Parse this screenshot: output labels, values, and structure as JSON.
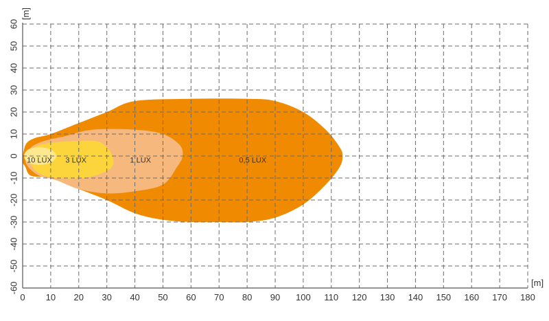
{
  "chart_data": {
    "type": "area",
    "title": "",
    "x_unit": "[m]",
    "y_unit": "[m]",
    "xlim": [
      0,
      180
    ],
    "ylim": [
      -60,
      60
    ],
    "x_ticks": [
      0,
      10,
      20,
      30,
      40,
      50,
      60,
      70,
      80,
      90,
      100,
      110,
      120,
      130,
      140,
      150,
      160,
      170,
      180
    ],
    "y_ticks": [
      60,
      50,
      40,
      30,
      20,
      10,
      0,
      -10,
      -20,
      -30,
      -40,
      -50,
      -60
    ],
    "grid": true,
    "grid_style": "dashed",
    "zones": [
      {
        "label": "0,5 LUX",
        "color": "#f08a00",
        "label_at": [
          82,
          -2
        ],
        "outline": [
          [
            0,
            -2
          ],
          [
            1,
            5
          ],
          [
            4,
            8
          ],
          [
            10,
            10
          ],
          [
            20,
            15
          ],
          [
            30,
            20
          ],
          [
            40,
            25
          ],
          [
            60,
            26
          ],
          [
            80,
            26
          ],
          [
            90,
            25
          ],
          [
            100,
            20
          ],
          [
            108,
            12
          ],
          [
            113,
            4
          ],
          [
            114,
            0
          ],
          [
            113,
            -5
          ],
          [
            108,
            -13
          ],
          [
            100,
            -22
          ],
          [
            90,
            -28
          ],
          [
            80,
            -30
          ],
          [
            70,
            -30
          ],
          [
            60,
            -30
          ],
          [
            50,
            -29
          ],
          [
            40,
            -26
          ],
          [
            30,
            -20
          ],
          [
            20,
            -15
          ],
          [
            10,
            -10
          ],
          [
            3,
            -9
          ],
          [
            1,
            -5
          ]
        ]
      },
      {
        "label": "1 LUX",
        "color": "#f6b87c",
        "label_at": [
          42,
          -2
        ],
        "outline": [
          [
            1,
            -1
          ],
          [
            3,
            4
          ],
          [
            8,
            7
          ],
          [
            15,
            9
          ],
          [
            25,
            12
          ],
          [
            40,
            12
          ],
          [
            50,
            10
          ],
          [
            56,
            5
          ],
          [
            57,
            0
          ],
          [
            55,
            -5
          ],
          [
            50,
            -13
          ],
          [
            40,
            -16
          ],
          [
            30,
            -17
          ],
          [
            20,
            -15
          ],
          [
            12,
            -11
          ],
          [
            6,
            -9
          ],
          [
            2,
            -5
          ]
        ]
      },
      {
        "label": "3 LUX",
        "color": "#fcd43b",
        "label_at": [
          19,
          -2
        ],
        "outline": [
          [
            2,
            0
          ],
          [
            4,
            4
          ],
          [
            10,
            6
          ],
          [
            22,
            7
          ],
          [
            28,
            6
          ],
          [
            32,
            0
          ],
          [
            31,
            -6
          ],
          [
            22,
            -10
          ],
          [
            12,
            -10
          ],
          [
            6,
            -8
          ],
          [
            3,
            -4
          ]
        ]
      },
      {
        "label": "10 LUX",
        "color": "#fde78f",
        "label_at": [
          6,
          -2
        ],
        "outline": [
          [
            0.5,
            0
          ],
          [
            2,
            3
          ],
          [
            6,
            4
          ],
          [
            10,
            3
          ],
          [
            12,
            0
          ],
          [
            10,
            -3
          ],
          [
            6,
            -4
          ],
          [
            2,
            -3
          ]
        ]
      }
    ]
  }
}
